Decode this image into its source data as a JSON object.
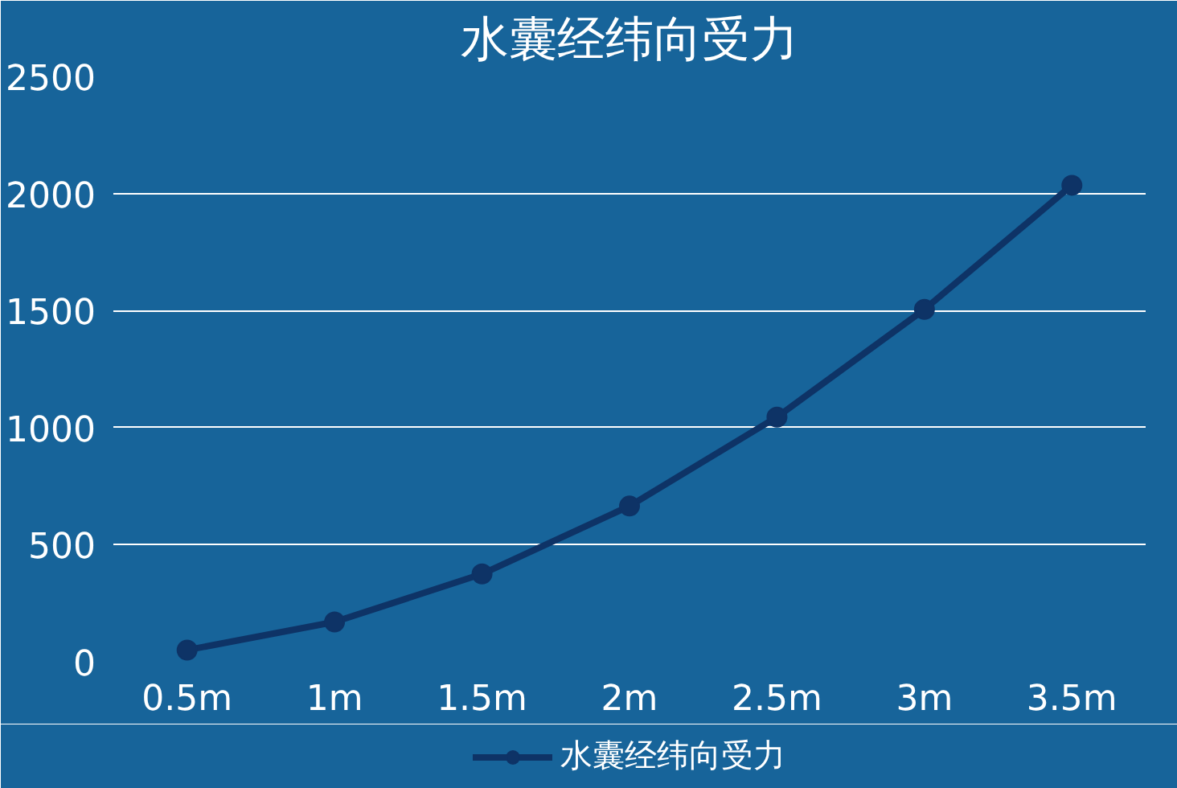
{
  "chart_data": {
    "type": "line",
    "title": "水囊经纬向受力",
    "categories": [
      "0.5m",
      "1m",
      "1.5m",
      "2m",
      "2.5m",
      "3m",
      "3.5m"
    ],
    "series": [
      {
        "name": "水囊经纬向受力",
        "color": "#0e3366",
        "values": [
          50,
          170,
          375,
          665,
          1045,
          1505,
          2035
        ]
      }
    ],
    "ylim": [
      0,
      2500
    ],
    "yticks": [
      0,
      500,
      1000,
      1500,
      2000,
      2500
    ],
    "grid": "y",
    "legend": "bottom",
    "marker": "circle",
    "line_style": "solid"
  }
}
